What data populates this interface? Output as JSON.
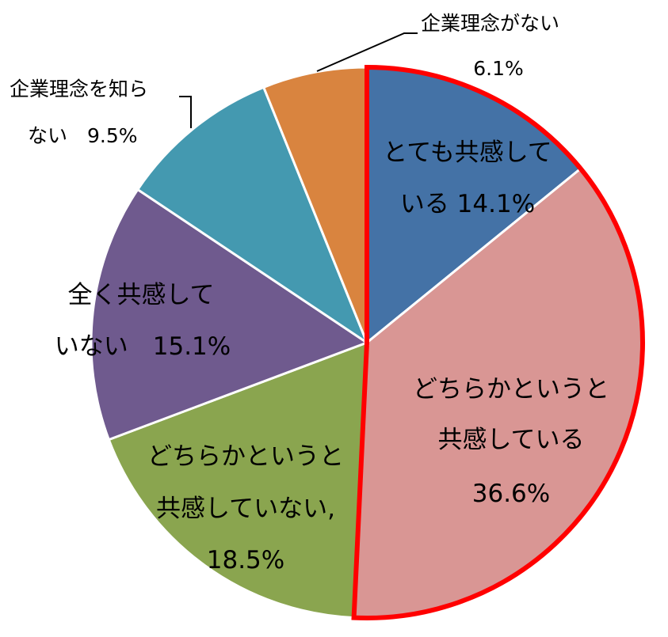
{
  "chart_data": {
    "type": "pie",
    "title": "",
    "start": "12 o'clock",
    "direction": "clockwise",
    "slices": [
      {
        "label_lines": [
          "とても共感して",
          "いる 14.1%"
        ],
        "value": 14.1,
        "color": "#4472a6"
      },
      {
        "label_lines": [
          "どちらかというと",
          "共感している",
          "36.6%"
        ],
        "value": 36.6,
        "color": "#d99694"
      },
      {
        "label_lines": [
          "どちらかというと",
          "共感していない,",
          "18.5%"
        ],
        "value": 18.5,
        "color": "#8aa54f"
      },
      {
        "label_lines": [
          "全く共感して",
          "いない　15.1%"
        ],
        "value": 15.1,
        "color": "#6f5a8e"
      },
      {
        "label_lines": [
          "企業理念を知ら",
          "ない　9.5%"
        ],
        "value": 9.5,
        "color": "#4499b0"
      },
      {
        "label_lines": [
          "企業理念がない",
          "6.1%"
        ],
        "value": 6.1,
        "color": "#d9843f"
      }
    ],
    "highlight": {
      "description": "red outline around the two upper-right slices",
      "slices": [
        0,
        1
      ],
      "color": "#ff0000"
    },
    "slice_separator_color": "#ffffff"
  }
}
